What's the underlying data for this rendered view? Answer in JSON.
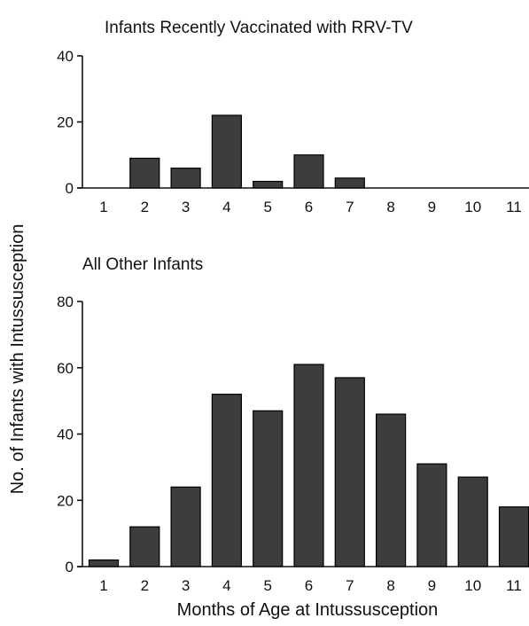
{
  "chart_data": [
    {
      "type": "bar",
      "title": "Infants Recently Vaccinated with RRV-TV",
      "categories": [
        "1",
        "2",
        "3",
        "4",
        "5",
        "6",
        "7",
        "8",
        "9",
        "10",
        "11"
      ],
      "values": [
        0,
        9,
        6,
        22,
        2,
        10,
        3,
        0,
        0,
        0,
        0
      ],
      "ylim": [
        0,
        40
      ],
      "yticks": [
        0,
        20,
        40
      ],
      "grid": false,
      "bar_color": "#3d3d3d"
    },
    {
      "type": "bar",
      "title": "All Other Infants",
      "categories": [
        "1",
        "2",
        "3",
        "4",
        "5",
        "6",
        "7",
        "8",
        "9",
        "10",
        "11"
      ],
      "values": [
        2,
        12,
        24,
        52,
        47,
        61,
        57,
        46,
        31,
        27,
        18
      ],
      "ylim": [
        0,
        80
      ],
      "yticks": [
        0,
        20,
        40,
        60,
        80
      ],
      "grid": false,
      "bar_color": "#3d3d3d"
    }
  ],
  "ylabel": "No. of Infants with Intussusception",
  "xlabel": "Months of Age at Intussusception"
}
